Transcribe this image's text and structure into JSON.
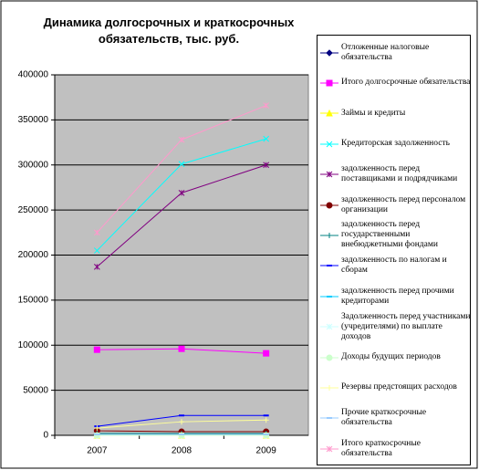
{
  "chart_data": {
    "type": "line",
    "title": "Динамика долгосрочных и краткосрочных обязательств, тыс. руб.",
    "categories": [
      "2007",
      "2008",
      "2009"
    ],
    "ylim": [
      0,
      400000
    ],
    "yticks": [
      0,
      50000,
      100000,
      150000,
      200000,
      250000,
      300000,
      350000,
      400000
    ],
    "grid": true,
    "series": [
      {
        "name": "Отложенные налоговые обязательства",
        "color": "#000080",
        "values": [
          1000,
          1000,
          1000
        ]
      },
      {
        "name": "Итого долгосрочные обязательства",
        "color": "#ff00ff",
        "values": [
          95000,
          96000,
          91000
        ]
      },
      {
        "name": "Займы и кредиты",
        "color": "#ffff00",
        "values": [
          0,
          0,
          0
        ]
      },
      {
        "name": "Кредиторская задолженность",
        "color": "#00ffff",
        "values": [
          205000,
          301000,
          329000
        ]
      },
      {
        "name": "задолженность перед поставщиками и подрядчиками",
        "color": "#800080",
        "values": [
          187000,
          269000,
          300000
        ]
      },
      {
        "name": "задолженность перед персоналом организации",
        "color": "#800000",
        "values": [
          5000,
          4000,
          4000
        ]
      },
      {
        "name": "задолженность перед государственными внебюджетными фондами",
        "color": "#008080",
        "values": [
          2000,
          2000,
          2000
        ]
      },
      {
        "name": "задолженность по налогам и сборам",
        "color": "#0000ff",
        "values": [
          10000,
          22000,
          22000
        ]
      },
      {
        "name": "задолженность перед прочими кредиторами",
        "color": "#00ccff",
        "values": [
          1000,
          1000,
          1000
        ]
      },
      {
        "name": "Задолженность перед участниками (учредителями) по выплате доходов",
        "color": "#ccffff",
        "values": [
          0,
          0,
          0
        ]
      },
      {
        "name": "Доходы будущих периодов",
        "color": "#ccffcc",
        "values": [
          0,
          0,
          0
        ]
      },
      {
        "name": "Резервы предстоящих расходов",
        "color": "#ffff99",
        "values": [
          8000,
          15000,
          17000
        ]
      },
      {
        "name": "Прочие краткосрочные обязательства",
        "color": "#99ccff",
        "values": [
          1000,
          1000,
          1000
        ]
      },
      {
        "name": "Итого краткосрочные обязательства",
        "color": "#ff99cc",
        "values": [
          225000,
          328000,
          366000
        ]
      }
    ]
  }
}
